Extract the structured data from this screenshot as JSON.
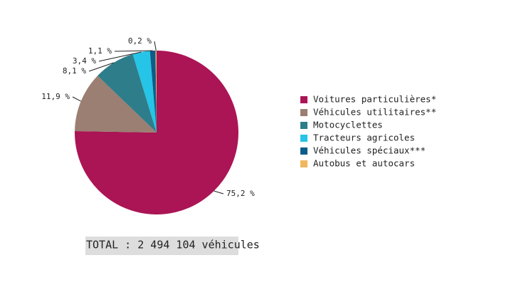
{
  "chart_data": {
    "type": "pie",
    "categories": [
      "Voitures particulières*",
      "Véhicules utilitaires**",
      "Motocyclettes",
      "Tracteurs agricoles",
      "Véhicules spéciaux***",
      "Autobus et autocars"
    ],
    "values": [
      75.2,
      11.9,
      8.1,
      3.4,
      1.1,
      0.2
    ],
    "value_labels": [
      "75,2 %",
      "11,9 %",
      "8,1 %",
      "3,4 %",
      "1,1 %",
      "0,2 %"
    ],
    "colors": [
      "#ab1455",
      "#9a7f72",
      "#2e7d8a",
      "#26c4e6",
      "#0d5c8a",
      "#f0b660"
    ],
    "legend": "right",
    "annotation": "TOTAL : 2 494 104 véhicules"
  }
}
